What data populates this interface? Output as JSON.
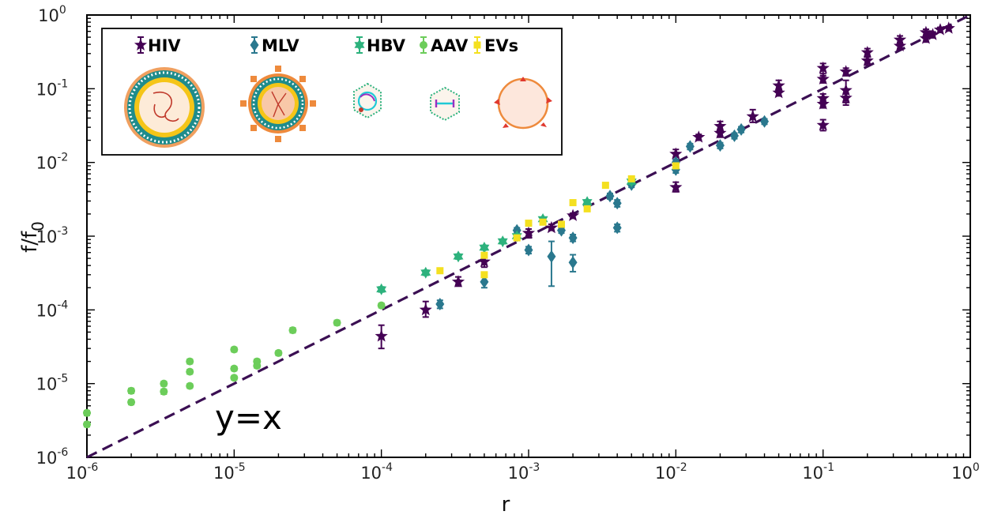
{
  "colors": {
    "HIV": "#440154",
    "MLV": "#2a788e",
    "HBV": "#2db27d",
    "AAV": "#6ccd5a",
    "EVs": "#f4e020",
    "fit_line": "#3b0f53",
    "frame": "#000000"
  },
  "chart_data": {
    "type": "scatter",
    "title": "",
    "xlabel": "r",
    "ylabel_main": "f/f",
    "ylabel_sub": "0",
    "x_scale": "log",
    "y_scale": "log",
    "xlim": [
      1e-06,
      1
    ],
    "ylim": [
      1e-06,
      1
    ],
    "x_ticks": [
      {
        "base": "10",
        "exp": "-6",
        "value": 1e-06
      },
      {
        "base": "10",
        "exp": "-5",
        "value": 1e-05
      },
      {
        "base": "10",
        "exp": "-4",
        "value": 0.0001
      },
      {
        "base": "10",
        "exp": "-3",
        "value": 0.001
      },
      {
        "base": "10",
        "exp": "-2",
        "value": 0.01
      },
      {
        "base": "10",
        "exp": "-1",
        "value": 0.1
      },
      {
        "base": "10",
        "exp": "0",
        "value": 1
      }
    ],
    "y_ticks": [
      {
        "base": "10",
        "exp": "-6",
        "value": 1e-06
      },
      {
        "base": "10",
        "exp": "-5",
        "value": 1e-05
      },
      {
        "base": "10",
        "exp": "-4",
        "value": 0.0001
      },
      {
        "base": "10",
        "exp": "-3",
        "value": 0.001
      },
      {
        "base": "10",
        "exp": "-2",
        "value": 0.01
      },
      {
        "base": "10",
        "exp": "-1",
        "value": 0.1
      },
      {
        "base": "10",
        "exp": "0",
        "value": 1
      }
    ],
    "grid": false,
    "legend_position": "top-left",
    "annotation": "y=x",
    "reference_line": {
      "label": "y=x",
      "style": "dashed"
    },
    "series": [
      {
        "name": "HIV",
        "marker": "star",
        "points": [
          {
            "x": 0.0001,
            "y": 4.4e-05,
            "ylo": 3e-05,
            "yhi": 6.2e-05
          },
          {
            "x": 0.0002,
            "y": 0.0001,
            "ylo": 8e-05,
            "yhi": 0.00013
          },
          {
            "x": 0.000333,
            "y": 0.00024,
            "ylo": 0.00021,
            "yhi": 0.00028
          },
          {
            "x": 0.0005,
            "y": 0.00045,
            "ylo": 0.00038,
            "yhi": 0.00052
          },
          {
            "x": 0.001,
            "y": 0.0011,
            "ylo": 0.00095,
            "yhi": 0.00125
          },
          {
            "x": 0.00143,
            "y": 0.0013,
            "ylo": 0.0012,
            "yhi": 0.00145
          },
          {
            "x": 0.002,
            "y": 0.0019,
            "ylo": 0.00175,
            "yhi": 0.00205
          },
          {
            "x": 0.01,
            "y": 0.013,
            "ylo": 0.011,
            "yhi": 0.015
          },
          {
            "x": 0.01,
            "y": 0.0046,
            "ylo": 0.004,
            "yhi": 0.0054
          },
          {
            "x": 0.0143,
            "y": 0.022,
            "ylo": 0.02,
            "yhi": 0.024
          },
          {
            "x": 0.02,
            "y": 0.031,
            "ylo": 0.027,
            "yhi": 0.036
          },
          {
            "x": 0.02,
            "y": 0.025,
            "ylo": 0.022,
            "yhi": 0.028
          },
          {
            "x": 0.0333,
            "y": 0.042,
            "ylo": 0.035,
            "yhi": 0.052
          },
          {
            "x": 0.05,
            "y": 0.11,
            "ylo": 0.095,
            "yhi": 0.13
          },
          {
            "x": 0.05,
            "y": 0.088,
            "ylo": 0.08,
            "yhi": 0.098
          },
          {
            "x": 0.1,
            "y": 0.19,
            "ylo": 0.16,
            "yhi": 0.22
          },
          {
            "x": 0.1,
            "y": 0.135,
            "ylo": 0.12,
            "yhi": 0.15
          },
          {
            "x": 0.1,
            "y": 0.074,
            "ylo": 0.063,
            "yhi": 0.085
          },
          {
            "x": 0.1,
            "y": 0.062,
            "ylo": 0.055,
            "yhi": 0.07
          },
          {
            "x": 0.1,
            "y": 0.032,
            "ylo": 0.027,
            "yhi": 0.038
          },
          {
            "x": 0.143,
            "y": 0.17,
            "ylo": 0.15,
            "yhi": 0.19
          },
          {
            "x": 0.143,
            "y": 0.095,
            "ylo": 0.06,
            "yhi": 0.13
          },
          {
            "x": 0.143,
            "y": 0.075,
            "ylo": 0.065,
            "yhi": 0.085
          },
          {
            "x": 0.2,
            "y": 0.31,
            "ylo": 0.27,
            "yhi": 0.35
          },
          {
            "x": 0.2,
            "y": 0.24,
            "ylo": 0.21,
            "yhi": 0.27
          },
          {
            "x": 0.333,
            "y": 0.46,
            "ylo": 0.4,
            "yhi": 0.52
          },
          {
            "x": 0.333,
            "y": 0.38,
            "ylo": 0.34,
            "yhi": 0.42
          },
          {
            "x": 0.5,
            "y": 0.58,
            "ylo": 0.52,
            "yhi": 0.64
          },
          {
            "x": 0.5,
            "y": 0.48,
            "ylo": 0.43,
            "yhi": 0.53
          },
          {
            "x": 0.556,
            "y": 0.54,
            "ylo": 0.49,
            "yhi": 0.59
          },
          {
            "x": 0.625,
            "y": 0.63,
            "ylo": 0.58,
            "yhi": 0.68
          },
          {
            "x": 0.714,
            "y": 0.66,
            "ylo": 0.61,
            "yhi": 0.71
          }
        ]
      },
      {
        "name": "MLV",
        "marker": "diamond",
        "points": [
          {
            "x": 0.00025,
            "y": 0.00012,
            "ylo": 0.000105,
            "yhi": 0.000135
          },
          {
            "x": 0.0005,
            "y": 0.00024,
            "ylo": 0.0002,
            "yhi": 0.00028
          },
          {
            "x": 0.000833,
            "y": 0.0012,
            "ylo": 0.0011,
            "yhi": 0.0013
          },
          {
            "x": 0.001,
            "y": 0.00065,
            "ylo": 0.00058,
            "yhi": 0.00072
          },
          {
            "x": 0.00143,
            "y": 0.00053,
            "ylo": 0.00021,
            "yhi": 0.00085
          },
          {
            "x": 0.00167,
            "y": 0.0012,
            "ylo": 0.0011,
            "yhi": 0.0013
          },
          {
            "x": 0.002,
            "y": 0.00095,
            "ylo": 0.00085,
            "yhi": 0.00105
          },
          {
            "x": 0.002,
            "y": 0.00044,
            "ylo": 0.00033,
            "yhi": 0.00056
          },
          {
            "x": 0.0025,
            "y": 0.0026,
            "ylo": 0.00235,
            "yhi": 0.00285
          },
          {
            "x": 0.00357,
            "y": 0.0035,
            "ylo": 0.0032,
            "yhi": 0.0038
          },
          {
            "x": 0.004,
            "y": 0.0028,
            "ylo": 0.0025,
            "yhi": 0.0031
          },
          {
            "x": 0.004,
            "y": 0.0013,
            "ylo": 0.00115,
            "yhi": 0.00145
          },
          {
            "x": 0.005,
            "y": 0.005,
            "ylo": 0.0046,
            "yhi": 0.0054
          },
          {
            "x": 0.01,
            "y": 0.01,
            "ylo": 0.009,
            "yhi": 0.011
          },
          {
            "x": 0.01,
            "y": 0.008,
            "ylo": 0.0072,
            "yhi": 0.0088
          },
          {
            "x": 0.0125,
            "y": 0.0165,
            "ylo": 0.015,
            "yhi": 0.018
          },
          {
            "x": 0.02,
            "y": 0.017,
            "ylo": 0.0155,
            "yhi": 0.0185
          },
          {
            "x": 0.025,
            "y": 0.023,
            "ylo": 0.021,
            "yhi": 0.025
          },
          {
            "x": 0.0278,
            "y": 0.028,
            "ylo": 0.0255,
            "yhi": 0.0305
          },
          {
            "x": 0.04,
            "y": 0.036,
            "ylo": 0.033,
            "yhi": 0.039
          }
        ]
      },
      {
        "name": "HBV",
        "marker": "hexagram",
        "points": [
          {
            "x": 0.0001,
            "y": 0.00019,
            "ylo": 0.000175,
            "yhi": 0.000205
          },
          {
            "x": 0.0002,
            "y": 0.00032,
            "ylo": 0.000295,
            "yhi": 0.000345
          },
          {
            "x": 0.000333,
            "y": 0.00053,
            "ylo": 0.00049,
            "yhi": 0.00057
          },
          {
            "x": 0.0005,
            "y": 0.0007,
            "ylo": 0.00065,
            "yhi": 0.00075
          },
          {
            "x": 0.000667,
            "y": 0.00085,
            "ylo": 0.00079,
            "yhi": 0.00091
          },
          {
            "x": 0.000833,
            "y": 0.001,
            "ylo": 0.00093,
            "yhi": 0.00107
          },
          {
            "x": 0.00125,
            "y": 0.0017,
            "ylo": 0.0016,
            "yhi": 0.0018
          },
          {
            "x": 0.0025,
            "y": 0.0029,
            "ylo": 0.0027,
            "yhi": 0.0031
          },
          {
            "x": 0.005,
            "y": 0.0055,
            "ylo": 0.0051,
            "yhi": 0.0059
          }
        ]
      },
      {
        "name": "AAV",
        "marker": "circle",
        "points": [
          {
            "x": 1e-06,
            "y": 4e-06,
            "ylo": 3.7e-06,
            "yhi": 4.3e-06
          },
          {
            "x": 1e-06,
            "y": 2.8e-06,
            "ylo": 2.6e-06,
            "yhi": 3e-06
          },
          {
            "x": 2e-06,
            "y": 8e-06,
            "ylo": 7.4e-06,
            "yhi": 8.6e-06
          },
          {
            "x": 2e-06,
            "y": 5.6e-06,
            "ylo": 5.2e-06,
            "yhi": 6e-06
          },
          {
            "x": 3.33e-06,
            "y": 1e-05,
            "ylo": 9.3e-06,
            "yhi": 1.07e-05
          },
          {
            "x": 3.33e-06,
            "y": 7.8e-06,
            "ylo": 7.2e-06,
            "yhi": 8.4e-06
          },
          {
            "x": 5e-06,
            "y": 2e-05,
            "ylo": 1.86e-05,
            "yhi": 2.14e-05
          },
          {
            "x": 5e-06,
            "y": 1.45e-05,
            "ylo": 1.35e-05,
            "yhi": 1.55e-05
          },
          {
            "x": 5e-06,
            "y": 9.3e-06,
            "ylo": 8.7e-06,
            "yhi": 9.9e-06
          },
          {
            "x": 1e-05,
            "y": 2.9e-05,
            "ylo": 2.7e-05,
            "yhi": 3.1e-05
          },
          {
            "x": 1e-05,
            "y": 1.6e-05,
            "ylo": 1.5e-05,
            "yhi": 1.7e-05
          },
          {
            "x": 1e-05,
            "y": 1.2e-05,
            "ylo": 1.12e-05,
            "yhi": 1.28e-05
          },
          {
            "x": 1.43e-05,
            "y": 2e-05,
            "ylo": 1.86e-05,
            "yhi": 2.14e-05
          },
          {
            "x": 1.43e-05,
            "y": 1.75e-05,
            "ylo": 1.63e-05,
            "yhi": 1.87e-05
          },
          {
            "x": 2e-05,
            "y": 2.6e-05,
            "ylo": 2.42e-05,
            "yhi": 2.78e-05
          },
          {
            "x": 2.5e-05,
            "y": 5.3e-05,
            "ylo": 4.9e-05,
            "yhi": 5.7e-05
          },
          {
            "x": 5e-05,
            "y": 6.7e-05,
            "ylo": 6.2e-05,
            "yhi": 7.2e-05
          },
          {
            "x": 0.0001,
            "y": 0.000115,
            "ylo": 0.000107,
            "yhi": 0.000123
          }
        ]
      },
      {
        "name": "EVs",
        "marker": "square",
        "points": [
          {
            "x": 0.00025,
            "y": 0.00034,
            "ylo": 0.00032,
            "yhi": 0.00036
          },
          {
            "x": 0.0005,
            "y": 0.0003,
            "ylo": 0.00028,
            "yhi": 0.00032
          },
          {
            "x": 0.0005,
            "y": 0.00055,
            "ylo": 0.00052,
            "yhi": 0.00058
          },
          {
            "x": 0.000833,
            "y": 0.00095,
            "ylo": 0.0009,
            "yhi": 0.001
          },
          {
            "x": 0.001,
            "y": 0.0015,
            "ylo": 0.00142,
            "yhi": 0.00158
          },
          {
            "x": 0.00125,
            "y": 0.00155,
            "ylo": 0.00147,
            "yhi": 0.00163
          },
          {
            "x": 0.00167,
            "y": 0.00145,
            "ylo": 0.00137,
            "yhi": 0.00153
          },
          {
            "x": 0.002,
            "y": 0.00285,
            "ylo": 0.0027,
            "yhi": 0.003
          },
          {
            "x": 0.0025,
            "y": 0.00235,
            "ylo": 0.00223,
            "yhi": 0.00247
          },
          {
            "x": 0.00333,
            "y": 0.0049,
            "ylo": 0.00465,
            "yhi": 0.00515
          },
          {
            "x": 0.005,
            "y": 0.006,
            "ylo": 0.0057,
            "yhi": 0.0063
          },
          {
            "x": 0.01,
            "y": 0.009,
            "ylo": 0.0085,
            "yhi": 0.0095
          }
        ]
      }
    ]
  }
}
